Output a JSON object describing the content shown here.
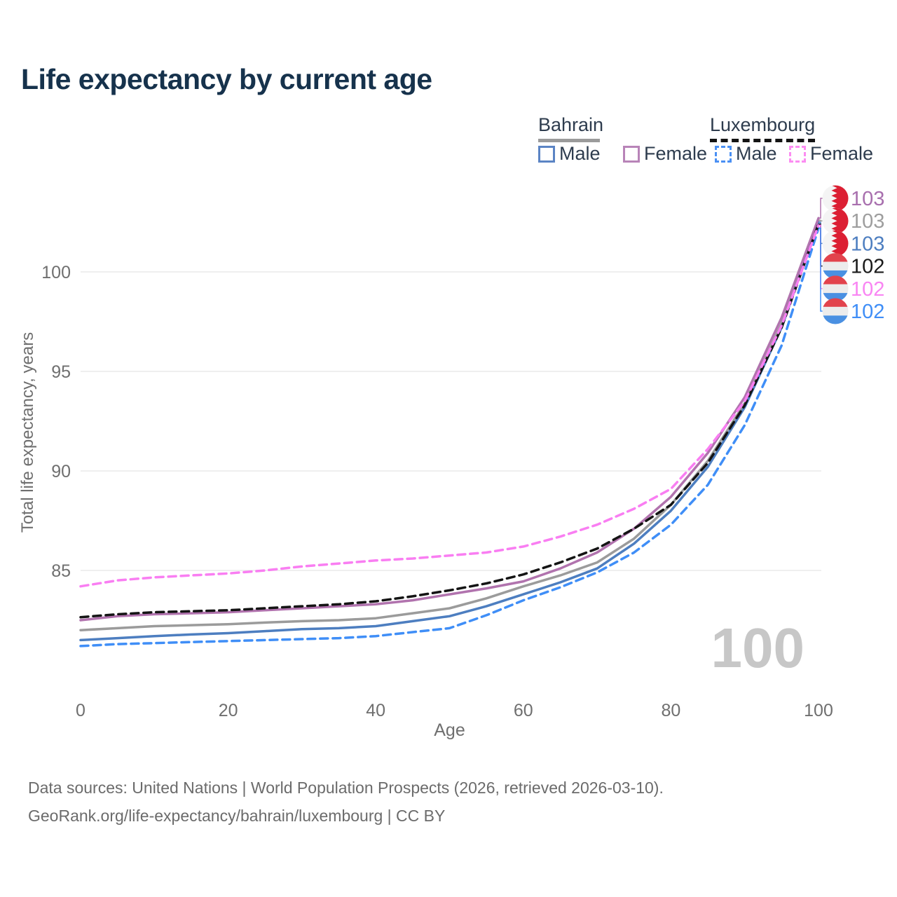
{
  "title": "Life expectancy by current age",
  "legend": {
    "groups": [
      {
        "label": "Bahrain",
        "style": "solid",
        "color": "#9b9b9b"
      },
      {
        "label": "Luxembourg",
        "style": "dashed",
        "color": "#141414"
      }
    ],
    "items": [
      {
        "label": "Male",
        "country": "Bahrain",
        "style": "solid",
        "color": "#4d7ec0"
      },
      {
        "label": "Female",
        "country": "Bahrain",
        "style": "solid",
        "color": "#b173ae"
      },
      {
        "label": "Male",
        "country": "Luxembourg",
        "style": "dashed",
        "color": "#3f8ef7"
      },
      {
        "label": "Female",
        "country": "Luxembourg",
        "style": "dashed",
        "color": "#f97ef2"
      }
    ]
  },
  "watermark": "100",
  "chart_data": {
    "type": "line",
    "title": "Life expectancy by current age",
    "xlabel": "Age",
    "ylabel": "Total life expectancy, years",
    "xlim": [
      0,
      100
    ],
    "ylim": [
      80.5,
      103.5
    ],
    "xticks": [
      0,
      20,
      40,
      60,
      80,
      100
    ],
    "yticks": [
      85,
      90,
      95,
      100
    ],
    "grid": "horizontal-only",
    "legend_position": "top-right",
    "x": [
      0,
      5,
      10,
      15,
      20,
      25,
      30,
      35,
      40,
      45,
      50,
      55,
      60,
      65,
      70,
      75,
      80,
      85,
      90,
      95,
      100
    ],
    "series": [
      {
        "name": "Bahrain Male",
        "country": "Bahrain",
        "sex": "Male",
        "color": "#4d7ec0",
        "dash": "solid",
        "values": [
          81.5,
          81.6,
          81.7,
          81.78,
          81.85,
          81.95,
          82.05,
          82.1,
          82.2,
          82.45,
          82.7,
          83.2,
          83.8,
          84.4,
          85.1,
          86.35,
          88.0,
          90.2,
          93.2,
          97.2,
          102.5
        ]
      },
      {
        "name": "Bahrain Female",
        "country": "Bahrain",
        "sex": "Female",
        "color": "#b173ae",
        "dash": "solid",
        "values": [
          82.5,
          82.7,
          82.8,
          82.85,
          82.9,
          83.0,
          83.1,
          83.2,
          83.3,
          83.5,
          83.8,
          84.1,
          84.45,
          85.1,
          85.9,
          87.1,
          88.7,
          90.9,
          93.7,
          97.7,
          102.7
        ]
      },
      {
        "name": "Bahrain Combined",
        "country": "Bahrain",
        "sex": "Combined",
        "color": "#9b9b9b",
        "dash": "solid",
        "values": [
          82.0,
          82.1,
          82.2,
          82.25,
          82.3,
          82.38,
          82.45,
          82.5,
          82.6,
          82.85,
          83.1,
          83.6,
          84.2,
          84.75,
          85.4,
          86.6,
          88.3,
          90.5,
          93.4,
          97.4,
          102.6
        ]
      },
      {
        "name": "Luxembourg Male",
        "country": "Luxembourg",
        "sex": "Male",
        "color": "#3f8ef7",
        "dash": "dashed",
        "values": [
          81.2,
          81.3,
          81.35,
          81.4,
          81.45,
          81.5,
          81.55,
          81.6,
          81.7,
          81.9,
          82.1,
          82.75,
          83.5,
          84.15,
          84.9,
          85.9,
          87.3,
          89.3,
          92.3,
          96.3,
          102.2
        ]
      },
      {
        "name": "Luxembourg Female",
        "country": "Luxembourg",
        "sex": "Female",
        "color": "#f97ef2",
        "dash": "dashed",
        "values": [
          84.2,
          84.5,
          84.65,
          84.75,
          84.85,
          85.0,
          85.2,
          85.35,
          85.5,
          85.6,
          85.75,
          85.9,
          86.2,
          86.7,
          87.3,
          88.1,
          89.1,
          91.1,
          93.5,
          97.3,
          102.35
        ]
      },
      {
        "name": "Luxembourg Combined",
        "country": "Luxembourg",
        "sex": "Combined",
        "color": "#141414",
        "dash": "dashed",
        "values": [
          82.65,
          82.8,
          82.9,
          82.95,
          83.0,
          83.1,
          83.2,
          83.3,
          83.45,
          83.7,
          84.0,
          84.35,
          84.8,
          85.4,
          86.1,
          87.1,
          88.3,
          90.4,
          93.3,
          97.2,
          102.4
        ]
      }
    ],
    "end_labels": [
      {
        "value": "103",
        "flag": "bahrain",
        "series": 1,
        "color": "#a86fae"
      },
      {
        "value": "103",
        "flag": "bahrain",
        "series": 2,
        "color": "#9e9e9e"
      },
      {
        "value": "103",
        "flag": "bahrain",
        "series": 0,
        "color": "#4d7ec0"
      },
      {
        "value": "102",
        "flag": "luxembourg",
        "series": 5,
        "color": "#1a1a1a"
      },
      {
        "value": "102",
        "flag": "luxembourg",
        "series": 4,
        "color": "#f985f3"
      },
      {
        "value": "102",
        "flag": "luxembourg",
        "series": 3,
        "color": "#3f8ef7"
      }
    ]
  },
  "footer": {
    "line1": "Data sources: United Nations | World Population Prospects (2026, retrieved 2026-03-10).",
    "line2": "GeoRank.org/life-expectancy/bahrain/luxembourg | CC BY"
  }
}
